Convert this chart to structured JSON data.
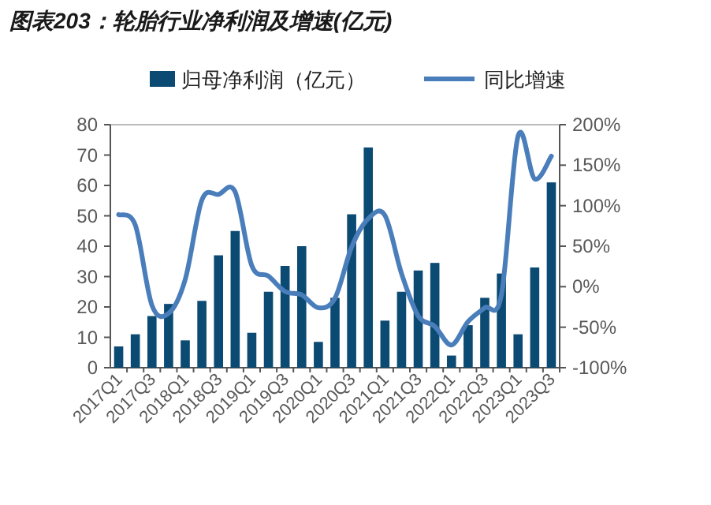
{
  "chart_data": {
    "type": "bar",
    "title": "图表203：轮胎行业净利润及增速(亿元)",
    "categories": [
      "2017Q1",
      null,
      "2017Q3",
      null,
      "2018Q1",
      null,
      "2018Q3",
      null,
      "2019Q1",
      null,
      "2019Q3",
      null,
      "2020Q1",
      null,
      "2020Q3",
      null,
      "2021Q1",
      null,
      "2021Q3",
      null,
      "2022Q1",
      null,
      "2022Q3",
      null,
      "2023Q1",
      null,
      "2023Q3"
    ],
    "series": [
      {
        "name": "归母净利润（亿元）",
        "color": "#0b4a72",
        "values": [
          7,
          11,
          17,
          21,
          9,
          22,
          37,
          45,
          11.5,
          25,
          33.5,
          40,
          8.5,
          23,
          50.5,
          72.5,
          15.5,
          25,
          32,
          34.5,
          4,
          14,
          23,
          31,
          11,
          33,
          61
        ]
      },
      {
        "name": "同比增速",
        "type": "line",
        "axis": "y2",
        "color": "#4a7ebb",
        "values": [
          89,
          76,
          -23,
          -33,
          9,
          107,
          114,
          117,
          26,
          13,
          -6,
          -10,
          -26,
          -14,
          49,
          84,
          88,
          16,
          -36,
          -49,
          -72,
          -43,
          -26,
          -10,
          186,
          133,
          161
        ]
      }
    ],
    "ylim": [
      0,
      80
    ],
    "yticks": [
      0,
      10,
      20,
      30,
      40,
      50,
      60,
      70,
      80
    ],
    "y2lim": [
      -100,
      200
    ],
    "y2ticks": [
      {
        "value": -100,
        "label": "-100%"
      },
      {
        "value": -50,
        "label": "-50%"
      },
      {
        "value": 0,
        "label": "0%"
      },
      {
        "value": 50,
        "label": "50%"
      },
      {
        "value": 100,
        "label": "100%"
      },
      {
        "value": 150,
        "label": "150%"
      },
      {
        "value": 200,
        "label": "200%"
      }
    ],
    "legend": "top",
    "grid": false
  }
}
